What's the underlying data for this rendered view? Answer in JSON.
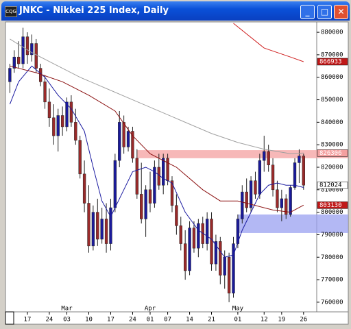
{
  "chart_data": {
    "type": "candlestick",
    "title": "JNKC - Nikkei 225 Index, Daily",
    "ylim": [
      755700,
      884600
    ],
    "xlim": [
      -1,
      70
    ],
    "yticks": [
      880000,
      870000,
      860000,
      850000,
      840000,
      830000,
      820000,
      810000,
      800000,
      790000,
      780000,
      770000,
      760000
    ],
    "xticks": [
      {
        "value": 4,
        "label": "17"
      },
      {
        "value": 9,
        "label": "24"
      },
      {
        "value": 13,
        "label": "03"
      },
      {
        "value": 18,
        "label": "10"
      },
      {
        "value": 23,
        "label": "17"
      },
      {
        "value": 28,
        "label": "24"
      },
      {
        "value": 32,
        "label": "01"
      },
      {
        "value": 36,
        "label": "07"
      },
      {
        "value": 41,
        "label": "14"
      },
      {
        "value": 46,
        "label": "21"
      },
      {
        "value": 52,
        "label": "01"
      },
      {
        "value": 58,
        "label": "12"
      },
      {
        "value": 62,
        "label": "19"
      },
      {
        "value": 67,
        "label": "26"
      }
    ],
    "month_labels": [
      {
        "value": 13,
        "label": "Mar"
      },
      {
        "value": 32,
        "label": "Apr"
      },
      {
        "value": 52,
        "label": "May"
      }
    ],
    "up_color": "#1a1a9a",
    "down_color": "#9a2a2a",
    "open": [
      858000,
      864000,
      869000,
      866000,
      878000,
      870000,
      875000,
      864000,
      858000,
      849000,
      842000,
      834000,
      843000,
      838000,
      849000,
      840000,
      832000,
      817000,
      804000,
      785000,
      800000,
      788000,
      797000,
      786000,
      802000,
      823000,
      840000,
      829000,
      836000,
      824000,
      808000,
      797000,
      810000,
      804000,
      820000,
      812000,
      824000,
      814000,
      803000,
      794000,
      786000,
      774000,
      793000,
      784000,
      795000,
      786000,
      797000,
      777000,
      787000,
      772000,
      780000,
      764000,
      786000,
      797000,
      809000,
      802000,
      814000,
      808000,
      823000,
      827000,
      821000,
      810000,
      802000,
      806000,
      799000,
      811000,
      822000,
      825000
    ],
    "high": [
      866000,
      872000,
      876000,
      882000,
      880000,
      879000,
      877000,
      866000,
      861000,
      855000,
      848000,
      846000,
      847000,
      851000,
      852000,
      846000,
      834000,
      823000,
      812000,
      803000,
      806000,
      802000,
      804000,
      806000,
      826000,
      845000,
      843000,
      838000,
      838000,
      828000,
      822000,
      812000,
      818000,
      823000,
      826000,
      826000,
      826000,
      816000,
      808000,
      798000,
      792000,
      796000,
      796000,
      797000,
      798000,
      800000,
      800000,
      790000,
      789000,
      783000,
      782000,
      789000,
      799000,
      812000,
      815000,
      816000,
      818000,
      826000,
      834000,
      830000,
      824000,
      814000,
      810000,
      808000,
      812000,
      824000,
      828000,
      826000
    ],
    "low": [
      853000,
      862000,
      864000,
      864000,
      866000,
      867000,
      862000,
      856000,
      846000,
      838000,
      830000,
      827000,
      834000,
      836000,
      838000,
      830000,
      815000,
      800000,
      782000,
      783000,
      785000,
      786000,
      782000,
      783000,
      800000,
      820000,
      826000,
      827000,
      822000,
      806000,
      795000,
      789000,
      800000,
      802000,
      810000,
      808000,
      812000,
      800000,
      790000,
      783000,
      770000,
      772000,
      782000,
      780000,
      784000,
      783000,
      774000,
      774000,
      768000,
      766000,
      760000,
      762000,
      784000,
      795000,
      800000,
      800000,
      806000,
      806000,
      818000,
      818000,
      807000,
      800000,
      796000,
      797000,
      798000,
      810000,
      813000,
      810000
    ],
    "close": [
      864000,
      869000,
      866000,
      878000,
      870000,
      875000,
      864000,
      858000,
      849000,
      842000,
      834000,
      843000,
      838000,
      849000,
      840000,
      832000,
      817000,
      804000,
      785000,
      800000,
      788000,
      797000,
      786000,
      802000,
      823000,
      840000,
      829000,
      836000,
      824000,
      808000,
      797000,
      810000,
      804000,
      820000,
      812000,
      824000,
      814000,
      803000,
      794000,
      786000,
      774000,
      793000,
      784000,
      795000,
      786000,
      797000,
      777000,
      787000,
      772000,
      780000,
      764000,
      786000,
      797000,
      809000,
      802000,
      814000,
      808000,
      823000,
      827000,
      821000,
      810000,
      802000,
      806000,
      799000,
      811000,
      822000,
      825000,
      812024
    ],
    "series": [
      {
        "color": "#1a1aa0",
        "x": [
          0,
          2,
          5,
          8,
          11,
          14,
          17,
          19,
          21,
          23,
          25,
          28,
          31,
          33,
          35,
          37,
          40,
          43,
          46,
          49,
          51,
          53,
          55,
          57,
          59,
          61,
          63,
          65,
          67
        ],
        "values": [
          848000,
          858000,
          865000,
          860000,
          852000,
          846000,
          836000,
          820000,
          805000,
          798000,
          806000,
          818000,
          820000,
          818000,
          815000,
          813000,
          800000,
          792000,
          788000,
          780000,
          781000,
          792000,
          800000,
          808000,
          812000,
          813000,
          812000,
          812000,
          811000
        ]
      },
      {
        "color": "#8b1010",
        "x": [
          0,
          6,
          12,
          18,
          24,
          28,
          32,
          38,
          44,
          48,
          52,
          56,
          60,
          64,
          67
        ],
        "values": [
          865000,
          862000,
          858000,
          852000,
          845000,
          834000,
          826000,
          820000,
          810000,
          805000,
          805000,
          803000,
          801000,
          800000,
          803130
        ]
      },
      {
        "color": "#a0a0a0",
        "x": [
          0,
          5,
          10,
          16,
          22,
          28,
          34,
          40,
          46,
          52,
          58,
          64,
          67
        ],
        "values": [
          877000,
          871000,
          866000,
          860000,
          855000,
          850000,
          845000,
          840000,
          835000,
          831000,
          828000,
          826000,
          826306
        ]
      },
      {
        "color": "#d02020",
        "x": [
          51,
          58,
          64,
          67
        ],
        "values": [
          884000,
          873000,
          869000,
          866933
        ]
      }
    ],
    "zones": [
      {
        "from": 29,
        "ylim": [
          824000,
          827600
        ],
        "color": "#f4a0a0"
      },
      {
        "from": 52,
        "ylim": [
          790760,
          799000
        ],
        "color": "#9aa0f0"
      }
    ],
    "price_tags": [
      {
        "value": 866933,
        "color": "#c01818",
        "text_color": "#ffffff"
      },
      {
        "value": 826306,
        "color": "#f4a0a0",
        "text_color": "#ffffff"
      },
      {
        "value": 812024,
        "color": "#ffffff",
        "text_color": "#000000"
      },
      {
        "value": 803130,
        "color": "#c01818",
        "text_color": "#ffffff"
      }
    ]
  }
}
